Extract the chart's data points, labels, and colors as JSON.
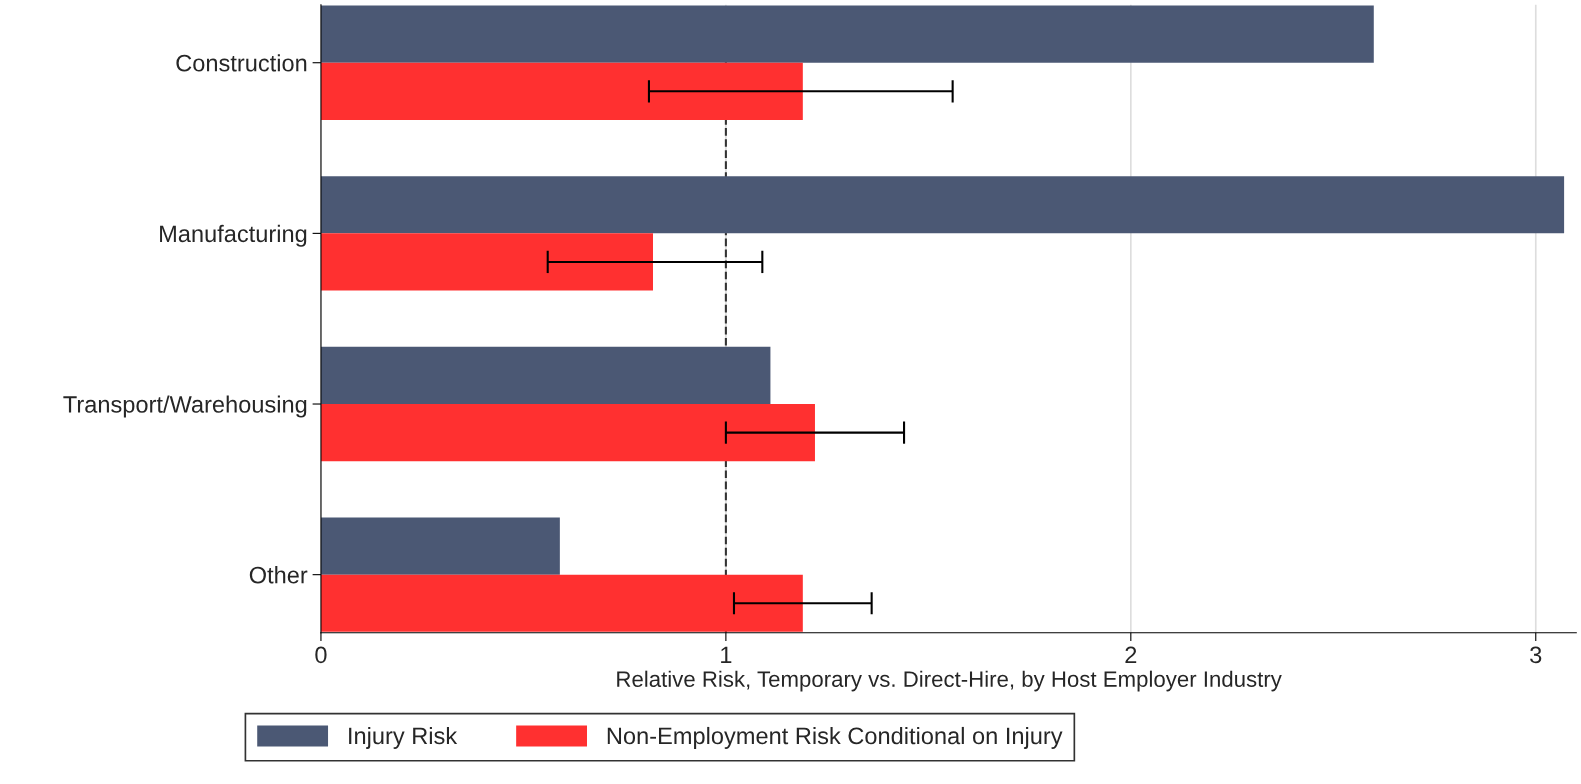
{
  "chart_data": {
    "type": "bar",
    "orientation": "horizontal",
    "categories": [
      "Construction",
      "Manufacturing",
      "Transport/Warehousing",
      "Other"
    ],
    "series": [
      {
        "name": "Injury Risk",
        "color": "#4b5874",
        "values": [
          2.6,
          3.07,
          1.11,
          0.59
        ]
      },
      {
        "name": "Non-Employment Risk Conditional on Injury",
        "color": "#ff3030",
        "values": [
          1.19,
          0.82,
          1.22,
          1.19
        ],
        "errors": [
          [
            0.81,
            1.56
          ],
          [
            0.56,
            1.09
          ],
          [
            1.0,
            1.44
          ],
          [
            1.02,
            1.36
          ]
        ]
      }
    ],
    "xlabel": "Relative Risk, Temporary vs. Direct-Hire, by Host Employer Industry",
    "xlim": [
      0,
      3.1
    ],
    "xticks": [
      0,
      1,
      2,
      3
    ],
    "grid": "x",
    "legend": "bottom",
    "ref_lines": [
      {
        "axis": "x",
        "value": 1,
        "line_style": "dashed",
        "color": "#333333"
      }
    ]
  }
}
